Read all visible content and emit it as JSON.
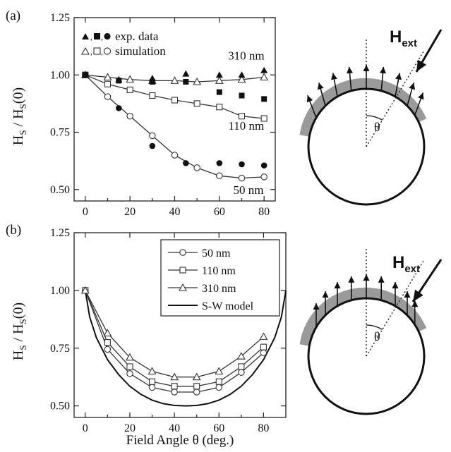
{
  "panel_labels": {
    "a": "(a)",
    "b": "(b)"
  },
  "chart_data": [
    {
      "type": "scatter",
      "panel": "(a)",
      "ylabel_main": "H",
      "ylabel_sub1": "S",
      "ylabel_mid": " / H",
      "ylabel_sub2": "S",
      "ylabel_end": "(0)",
      "xlim": [
        -5,
        85
      ],
      "ylim": [
        0.45,
        1.25
      ],
      "xticks": [
        0,
        20,
        40,
        60,
        80
      ],
      "xtick_labels": [
        "0",
        "20",
        "40",
        "60",
        "80"
      ],
      "yticks": [
        0.5,
        0.75,
        1.0,
        1.25
      ],
      "ytick_labels": [
        "0.50",
        "0.75",
        "1.00",
        "1.25"
      ],
      "legend": {
        "position": "top-left",
        "rows": [
          {
            "label": "exp. data",
            "style": "solid"
          },
          {
            "label": "simulation",
            "style": "open"
          }
        ]
      },
      "annotations": [
        {
          "text": "310 nm",
          "x": 72,
          "y": 1.085
        },
        {
          "text": "110 nm",
          "x": 72,
          "y": 0.78
        },
        {
          "text": "50 nm",
          "x": 73,
          "y": 0.5
        }
      ],
      "series": [
        {
          "marker": "triangle",
          "style": "open",
          "x": [
            0,
            10,
            20,
            30,
            40,
            50,
            60,
            70,
            80
          ],
          "y": [
            1.0,
            0.99,
            0.98,
            0.975,
            0.975,
            0.97,
            0.975,
            0.98,
            0.99
          ]
        },
        {
          "marker": "square",
          "style": "open",
          "x": [
            0,
            10,
            20,
            30,
            40,
            50,
            60,
            70,
            80
          ],
          "y": [
            1.0,
            0.96,
            0.935,
            0.91,
            0.89,
            0.875,
            0.86,
            0.82,
            0.81
          ]
        },
        {
          "marker": "circle",
          "style": "open",
          "x": [
            0,
            10,
            20,
            30,
            40,
            50,
            60,
            70,
            80
          ],
          "y": [
            1.0,
            0.905,
            0.82,
            0.735,
            0.65,
            0.595,
            0.56,
            0.55,
            0.555
          ]
        },
        {
          "marker": "triangle",
          "style": "solid",
          "x": [
            0,
            15,
            30,
            45,
            60,
            70,
            80
          ],
          "y": [
            1.0,
            0.98,
            0.985,
            1.005,
            1.0,
            1.0,
            1.02
          ]
        },
        {
          "marker": "square",
          "style": "solid",
          "x": [
            0,
            15,
            30,
            45,
            60,
            70,
            80
          ],
          "y": [
            1.0,
            0.975,
            0.97,
            0.97,
            0.925,
            0.91,
            0.895
          ]
        },
        {
          "marker": "circle",
          "style": "solid",
          "x": [
            0,
            15,
            30,
            45,
            60,
            70,
            80
          ],
          "y": [
            1.0,
            0.855,
            0.69,
            0.615,
            0.615,
            0.61,
            0.605
          ]
        }
      ]
    },
    {
      "type": "line",
      "panel": "(b)",
      "xlabel": "Field Angle θ (deg.)",
      "ylabel_main": "H",
      "ylabel_sub1": "S",
      "ylabel_mid": " / H",
      "ylabel_sub2": "S",
      "ylabel_end": "(0)",
      "xlim": [
        -5,
        90
      ],
      "ylim": [
        0.45,
        1.25
      ],
      "xticks": [
        0,
        20,
        40,
        60,
        80
      ],
      "xtick_labels": [
        "0",
        "20",
        "40",
        "60",
        "80"
      ],
      "yticks": [
        0.5,
        0.75,
        1.0,
        1.25
      ],
      "ytick_labels": [
        "0.50",
        "0.75",
        "1.00",
        "1.25"
      ],
      "legend": {
        "position": "top-right"
      },
      "series": [
        {
          "name": "50 nm",
          "marker": "circle",
          "x": [
            0,
            10,
            20,
            30,
            40,
            50,
            60,
            70,
            80
          ],
          "y": [
            1.0,
            0.745,
            0.64,
            0.58,
            0.56,
            0.56,
            0.58,
            0.645,
            0.73
          ]
        },
        {
          "name": "110 nm",
          "marker": "square",
          "x": [
            0,
            10,
            20,
            30,
            40,
            50,
            60,
            70,
            80
          ],
          "y": [
            1.0,
            0.775,
            0.67,
            0.605,
            0.585,
            0.585,
            0.605,
            0.67,
            0.755
          ]
        },
        {
          "name": "310 nm",
          "marker": "triangle",
          "x": [
            0,
            10,
            20,
            30,
            40,
            50,
            60,
            70,
            80
          ],
          "y": [
            1.0,
            0.815,
            0.71,
            0.65,
            0.625,
            0.625,
            0.65,
            0.715,
            0.8
          ]
        },
        {
          "name": "S-W model",
          "marker": "none",
          "x": [
            0,
            2,
            5,
            10,
            15,
            20,
            25,
            30,
            35,
            40,
            45,
            50,
            55,
            60,
            65,
            70,
            75,
            80,
            85,
            88,
            90
          ],
          "y": [
            1.0,
            0.885,
            0.795,
            0.7,
            0.635,
            0.585,
            0.55,
            0.525,
            0.51,
            0.502,
            0.5,
            0.502,
            0.51,
            0.525,
            0.55,
            0.585,
            0.635,
            0.7,
            0.795,
            0.885,
            1.0
          ]
        }
      ]
    }
  ],
  "schematic": {
    "field_label": "H",
    "field_sub": "ext",
    "angle_label": "θ"
  }
}
